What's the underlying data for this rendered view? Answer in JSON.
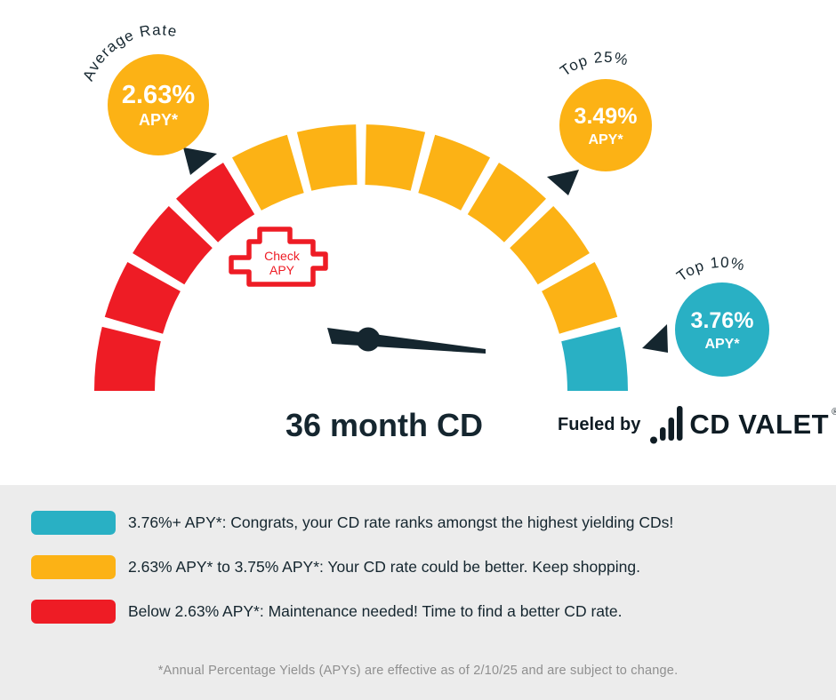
{
  "chart_data": {
    "type": "gauge",
    "title": "36 month CD",
    "arc_degrees": 180,
    "segment_total": 12,
    "zones": [
      {
        "color": "#ee1c25",
        "segments": 4,
        "range": "Below 2.63% APY*"
      },
      {
        "color": "#fcb215",
        "segments": 7,
        "range": "2.63% APY* to 3.75% APY*"
      },
      {
        "color": "#29b0c4",
        "segments": 1,
        "range": "3.76%+ APY*"
      }
    ],
    "markers": [
      {
        "label": "Average Rate",
        "value": "2.63%",
        "suffix": "APY*",
        "badge_color": "#fcb215"
      },
      {
        "label": "Top 25%",
        "value": "3.49%",
        "suffix": "APY*",
        "badge_color": "#fcb215"
      },
      {
        "label": "Top 10%",
        "value": "3.76%",
        "suffix": "APY*",
        "badge_color": "#29b0c4"
      }
    ],
    "check_engine": {
      "line1": "Check",
      "line2": "APY"
    }
  },
  "branding": {
    "fueled_by": "Fueled by",
    "brand": "CD VALET",
    "registered": "®"
  },
  "legend": {
    "items": [
      {
        "color": "#29b0c4",
        "text": "3.76%+ APY*: Congrats, your CD rate ranks amongst the highest yielding CDs!"
      },
      {
        "color": "#fcb215",
        "text": "2.63% APY* to 3.75% APY*: Your CD rate could be better. Keep shopping."
      },
      {
        "color": "#ee1c25",
        "text": "Below 2.63% APY*: Maintenance needed! Time to find a better CD rate."
      }
    ]
  },
  "footnote": "*Annual Percentage Yields (APYs) are effective as of 2/10/25 and are subject to change."
}
